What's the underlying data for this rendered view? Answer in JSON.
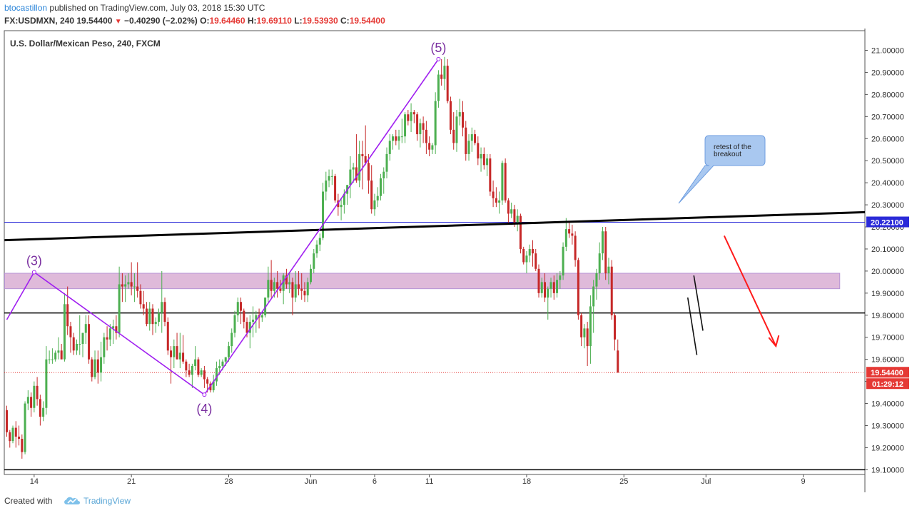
{
  "header": {
    "author": "btocastillon",
    "published_text": "published on TradingView.com, July 03, 2018 15:30 UTC",
    "symbol": "FX:USDMXN, 240",
    "last": "19.54400",
    "change_arrow": "▼",
    "change": "−0.40290 (−2.02%)",
    "o_label": "O:",
    "o_val": "19.64460",
    "h_label": "H:",
    "h_val": "19.69110",
    "l_label": "L:",
    "l_val": "19.53930",
    "c_label": "C:",
    "c_val": "19.54400"
  },
  "footer": {
    "created_with": "Created with",
    "brand": "TradingView",
    "brand_icon": "tradingview-cloud-icon"
  },
  "colors": {
    "up": "#4caf50",
    "down": "#c62828",
    "wave": "#a020f0",
    "zone": "#d9aed3",
    "trendline": "#000000",
    "hline_blue": "#2a2ad8",
    "price_label": "#e53935",
    "callout_fill": "#a9c8f0"
  },
  "chart_data": {
    "type": "candlestick",
    "title": "U.S. Dollar/Mexican Peso, 240, FXCM",
    "ylim": [
      19.07,
      21.09
    ],
    "price_ticks": [
      "21.00000",
      "20.90000",
      "20.80000",
      "20.70000",
      "20.60000",
      "20.50000",
      "20.40000",
      "20.30000",
      "20.20000",
      "20.10000",
      "20.00000",
      "19.90000",
      "19.80000",
      "19.70000",
      "19.60000",
      "19.50000",
      "19.40000",
      "19.30000",
      "19.20000",
      "19.10000"
    ],
    "time_ticks": [
      {
        "label": "14",
        "bar": 9
      },
      {
        "label": "21",
        "bar": 41
      },
      {
        "label": "28",
        "bar": 73
      },
      {
        "label": "Jun",
        "bar": 100
      },
      {
        "label": "6",
        "bar": 121
      },
      {
        "label": "11",
        "bar": 139
      },
      {
        "label": "18",
        "bar": 171
      },
      {
        "label": "25",
        "bar": 203
      },
      {
        "label": "Jul",
        "bar": 230
      },
      {
        "label": "9",
        "bar": 262
      }
    ],
    "last_price_label": "19.54400",
    "countdown_label": "01:29:12",
    "blue_level_label": "20.22100",
    "blue_level": 20.221,
    "black_levels": [
      19.81,
      19.1
    ],
    "zone": {
      "from_bar": 0,
      "to_bar": 274,
      "low": 19.92,
      "high": 19.99
    },
    "trendline": {
      "from_bar": 0,
      "from_price": 20.14,
      "to_bar": 290,
      "to_price": 20.27
    },
    "wave_labels": [
      {
        "label": "(3)",
        "bar": 9,
        "price": 19.995
      },
      {
        "label": "(4)",
        "bar": 65,
        "price": 19.44
      },
      {
        "label": "(5)",
        "bar": 142,
        "price": 20.96
      }
    ],
    "wave_path": [
      [
        0,
        19.78
      ],
      [
        9,
        19.995
      ],
      [
        65,
        19.44
      ],
      [
        142,
        20.96
      ]
    ],
    "annotation": "retest of the breakout",
    "forecast_arrow": {
      "from_bar": 236,
      "from_price": 20.16,
      "to_bar": 253,
      "to_price": 19.66
    },
    "ohlc": [
      [
        19.37,
        19.39,
        19.25,
        19.27
      ],
      [
        19.27,
        19.28,
        19.2,
        19.23
      ],
      [
        19.23,
        19.3,
        19.22,
        19.29
      ],
      [
        19.29,
        19.32,
        19.2,
        19.25
      ],
      [
        19.25,
        19.3,
        19.21,
        19.24
      ],
      [
        19.24,
        19.26,
        19.15,
        19.18
      ],
      [
        19.18,
        19.41,
        19.17,
        19.4
      ],
      [
        19.4,
        19.46,
        19.37,
        19.43
      ],
      [
        19.43,
        19.45,
        19.34,
        19.38
      ],
      [
        19.38,
        19.5,
        19.36,
        19.48
      ],
      [
        19.48,
        19.52,
        19.39,
        19.42
      ],
      [
        19.42,
        19.44,
        19.3,
        19.34
      ],
      [
        19.34,
        19.41,
        19.32,
        19.38
      ],
      [
        19.38,
        19.66,
        19.35,
        19.6
      ],
      [
        19.6,
        19.64,
        19.58,
        19.6
      ],
      [
        19.6,
        19.65,
        19.58,
        19.6
      ],
      [
        19.6,
        19.64,
        19.59,
        19.63
      ],
      [
        19.63,
        19.7,
        19.6,
        19.64
      ],
      [
        19.64,
        19.67,
        19.6,
        19.6
      ],
      [
        19.6,
        19.9,
        19.59,
        19.85
      ],
      [
        19.85,
        19.93,
        19.71,
        19.75
      ],
      [
        19.75,
        19.77,
        19.63,
        19.7
      ],
      [
        19.7,
        19.72,
        19.62,
        19.64
      ],
      [
        19.64,
        19.69,
        19.62,
        19.67
      ],
      [
        19.67,
        19.8,
        19.62,
        19.67
      ],
      [
        19.67,
        19.72,
        19.61,
        19.72
      ],
      [
        19.72,
        19.8,
        19.67,
        19.76
      ],
      [
        19.76,
        19.8,
        19.58,
        19.6
      ],
      [
        19.6,
        19.61,
        19.5,
        19.52
      ],
      [
        19.52,
        19.64,
        19.51,
        19.6
      ],
      [
        19.6,
        19.64,
        19.49,
        19.54
      ],
      [
        19.54,
        19.68,
        19.5,
        19.61
      ],
      [
        19.61,
        19.72,
        19.58,
        19.7
      ],
      [
        19.7,
        19.75,
        19.64,
        19.69
      ],
      [
        19.69,
        19.76,
        19.66,
        19.74
      ],
      [
        19.74,
        19.78,
        19.67,
        19.75
      ],
      [
        19.75,
        19.8,
        19.69,
        19.72
      ],
      [
        19.72,
        20.02,
        19.7,
        19.94
      ],
      [
        19.94,
        19.99,
        19.86,
        19.93
      ],
      [
        19.93,
        19.98,
        19.86,
        19.94
      ],
      [
        19.94,
        19.99,
        19.92,
        19.95
      ],
      [
        19.95,
        20.04,
        19.89,
        19.93
      ],
      [
        19.93,
        19.99,
        19.86,
        19.93
      ],
      [
        19.93,
        20.04,
        19.88,
        19.91
      ],
      [
        19.91,
        19.94,
        19.83,
        19.85
      ],
      [
        19.85,
        19.91,
        19.8,
        19.83
      ],
      [
        19.83,
        19.86,
        19.75,
        19.76
      ],
      [
        19.76,
        19.86,
        19.73,
        19.83
      ],
      [
        19.83,
        19.85,
        19.71,
        19.76
      ],
      [
        19.76,
        19.79,
        19.72,
        19.77
      ],
      [
        19.77,
        19.83,
        19.75,
        19.81
      ],
      [
        19.81,
        20.0,
        19.72,
        19.86
      ],
      [
        19.86,
        19.88,
        19.75,
        19.77
      ],
      [
        19.77,
        19.79,
        19.62,
        19.64
      ],
      [
        19.64,
        19.66,
        19.49,
        19.61
      ],
      [
        19.61,
        19.69,
        19.56,
        19.66
      ],
      [
        19.66,
        19.72,
        19.6,
        19.6
      ],
      [
        19.6,
        19.72,
        19.56,
        19.63
      ],
      [
        19.63,
        19.71,
        19.58,
        19.59
      ],
      [
        19.59,
        19.6,
        19.52,
        19.55
      ],
      [
        19.55,
        19.58,
        19.52,
        19.53
      ],
      [
        19.53,
        19.58,
        19.47,
        19.57
      ],
      [
        19.57,
        19.66,
        19.55,
        19.6
      ],
      [
        19.6,
        19.61,
        19.52,
        19.53
      ],
      [
        19.53,
        19.56,
        19.52,
        19.55
      ],
      [
        19.55,
        19.57,
        19.47,
        19.51
      ],
      [
        19.51,
        19.52,
        19.45,
        19.49
      ],
      [
        19.49,
        19.5,
        19.45,
        19.46
      ],
      [
        19.46,
        19.53,
        19.45,
        19.5
      ],
      [
        19.5,
        19.59,
        19.48,
        19.56
      ],
      [
        19.56,
        19.6,
        19.53,
        19.57
      ],
      [
        19.57,
        19.6,
        19.55,
        19.59
      ],
      [
        19.59,
        19.61,
        19.57,
        19.61
      ],
      [
        19.61,
        19.68,
        19.59,
        19.66
      ],
      [
        19.66,
        19.74,
        19.63,
        19.72
      ],
      [
        19.72,
        19.82,
        19.7,
        19.8
      ],
      [
        19.8,
        19.88,
        19.77,
        19.86
      ],
      [
        19.86,
        19.88,
        19.76,
        19.82
      ],
      [
        19.82,
        19.83,
        19.74,
        19.77
      ],
      [
        19.77,
        19.79,
        19.7,
        19.72
      ],
      [
        19.72,
        19.8,
        19.65,
        19.77
      ],
      [
        19.77,
        19.84,
        19.7,
        19.78
      ],
      [
        19.78,
        19.82,
        19.72,
        19.8
      ],
      [
        19.8,
        19.83,
        19.74,
        19.79
      ],
      [
        19.79,
        19.81,
        19.77,
        19.8
      ],
      [
        19.8,
        19.88,
        19.79,
        19.88
      ],
      [
        19.88,
        20.02,
        19.86,
        19.96
      ],
      [
        19.96,
        20.05,
        19.88,
        19.91
      ],
      [
        19.91,
        19.97,
        19.88,
        19.95
      ],
      [
        19.95,
        20.0,
        19.88,
        19.92
      ],
      [
        19.92,
        19.96,
        19.9,
        19.91
      ],
      [
        19.91,
        19.99,
        19.85,
        19.98
      ],
      [
        19.98,
        20.01,
        19.92,
        19.94
      ],
      [
        19.94,
        19.99,
        19.9,
        19.95
      ],
      [
        19.95,
        19.97,
        19.8,
        19.88
      ],
      [
        19.88,
        20.0,
        19.86,
        19.94
      ],
      [
        19.94,
        20.0,
        19.89,
        19.92
      ],
      [
        19.92,
        19.99,
        19.87,
        19.91
      ],
      [
        19.91,
        19.95,
        19.86,
        19.89
      ],
      [
        19.89,
        19.97,
        19.86,
        19.95
      ],
      [
        19.95,
        20.03,
        19.94,
        20.01
      ],
      [
        20.01,
        20.1,
        19.99,
        20.08
      ],
      [
        20.08,
        20.14,
        20.06,
        20.12
      ],
      [
        20.12,
        20.17,
        20.09,
        20.15
      ],
      [
        20.15,
        20.4,
        20.14,
        20.36
      ],
      [
        20.36,
        20.45,
        20.32,
        20.41
      ],
      [
        20.41,
        20.46,
        20.38,
        20.43
      ],
      [
        20.43,
        20.46,
        20.39,
        20.43
      ],
      [
        20.43,
        20.44,
        20.31,
        20.32
      ],
      [
        20.32,
        20.35,
        20.25,
        20.29
      ],
      [
        20.29,
        20.33,
        20.23,
        20.3
      ],
      [
        20.3,
        20.37,
        20.26,
        20.35
      ],
      [
        20.35,
        20.39,
        20.3,
        20.39
      ],
      [
        20.39,
        20.52,
        20.33,
        20.46
      ],
      [
        20.46,
        20.49,
        20.4,
        20.47
      ],
      [
        20.47,
        20.62,
        20.4,
        20.41
      ],
      [
        20.41,
        20.59,
        20.38,
        20.53
      ],
      [
        20.53,
        20.59,
        20.37,
        20.52
      ],
      [
        20.52,
        20.66,
        20.48,
        20.49
      ],
      [
        20.49,
        20.53,
        20.35,
        20.41
      ],
      [
        20.41,
        20.48,
        20.26,
        20.28
      ],
      [
        20.28,
        20.35,
        20.25,
        20.32
      ],
      [
        20.32,
        20.38,
        20.29,
        20.34
      ],
      [
        20.34,
        20.44,
        20.32,
        20.42
      ],
      [
        20.42,
        20.47,
        20.35,
        20.45
      ],
      [
        20.45,
        20.56,
        20.42,
        20.53
      ],
      [
        20.53,
        20.62,
        20.5,
        20.59
      ],
      [
        20.59,
        20.62,
        20.55,
        20.61
      ],
      [
        20.61,
        20.64,
        20.57,
        20.59
      ],
      [
        20.59,
        20.64,
        20.55,
        20.61
      ],
      [
        20.61,
        20.69,
        20.58,
        20.61
      ],
      [
        20.61,
        20.72,
        20.58,
        20.71
      ],
      [
        20.71,
        20.73,
        20.66,
        20.68
      ],
      [
        20.68,
        20.76,
        20.63,
        20.72
      ],
      [
        20.72,
        20.73,
        20.67,
        20.71
      ],
      [
        20.71,
        20.72,
        20.59,
        20.62
      ],
      [
        20.62,
        20.69,
        20.56,
        20.67
      ],
      [
        20.67,
        20.7,
        20.58,
        20.64
      ],
      [
        20.64,
        20.68,
        20.53,
        20.58
      ],
      [
        20.58,
        20.61,
        20.52,
        20.55
      ],
      [
        20.55,
        20.58,
        20.53,
        20.57
      ],
      [
        20.57,
        20.81,
        20.53,
        20.77
      ],
      [
        20.77,
        20.91,
        20.74,
        20.89
      ],
      [
        20.89,
        20.96,
        20.84,
        20.87
      ],
      [
        20.87,
        20.97,
        20.82,
        20.93
      ],
      [
        20.93,
        20.96,
        20.76,
        20.77
      ],
      [
        20.77,
        20.79,
        20.62,
        20.64
      ],
      [
        20.64,
        20.72,
        20.55,
        20.58
      ],
      [
        20.58,
        20.73,
        20.54,
        20.7
      ],
      [
        20.7,
        20.78,
        20.66,
        20.72
      ],
      [
        20.72,
        20.77,
        20.61,
        20.65
      ],
      [
        20.65,
        20.68,
        20.5,
        20.53
      ],
      [
        20.53,
        20.62,
        20.5,
        20.59
      ],
      [
        20.59,
        20.65,
        20.54,
        20.62
      ],
      [
        20.62,
        20.64,
        20.57,
        20.58
      ],
      [
        20.58,
        20.61,
        20.48,
        20.51
      ],
      [
        20.51,
        20.56,
        20.45,
        20.53
      ],
      [
        20.53,
        20.56,
        20.46,
        20.48
      ],
      [
        20.48,
        20.53,
        20.43,
        20.51
      ],
      [
        20.51,
        20.53,
        20.34,
        20.36
      ],
      [
        20.36,
        20.41,
        20.29,
        20.33
      ],
      [
        20.33,
        20.38,
        20.29,
        20.31
      ],
      [
        20.31,
        20.36,
        20.26,
        20.32
      ],
      [
        20.32,
        20.5,
        20.3,
        20.49
      ],
      [
        20.49,
        20.51,
        20.31,
        20.32
      ],
      [
        20.32,
        20.33,
        20.21,
        20.26
      ],
      [
        20.26,
        20.31,
        20.24,
        20.28
      ],
      [
        20.28,
        20.3,
        20.2,
        20.22
      ],
      [
        20.22,
        20.28,
        20.18,
        20.25
      ],
      [
        20.25,
        20.26,
        20.08,
        20.1
      ],
      [
        20.1,
        20.11,
        20.03,
        20.04
      ],
      [
        20.04,
        20.09,
        19.99,
        20.07
      ],
      [
        20.07,
        20.12,
        20.04,
        20.1
      ],
      [
        20.1,
        20.14,
        20.02,
        20.08
      ],
      [
        20.08,
        20.1,
        20.0,
        20.01
      ],
      [
        20.01,
        20.03,
        19.88,
        19.9
      ],
      [
        19.9,
        19.97,
        19.88,
        19.95
      ],
      [
        19.95,
        19.99,
        19.86,
        19.88
      ],
      [
        19.88,
        19.93,
        19.78,
        19.92
      ],
      [
        19.92,
        19.97,
        19.88,
        19.95
      ],
      [
        19.95,
        19.98,
        19.87,
        19.9
      ],
      [
        19.9,
        19.99,
        19.88,
        19.96
      ],
      [
        19.96,
        20.0,
        19.92,
        19.98
      ],
      [
        19.98,
        20.13,
        19.96,
        20.11
      ],
      [
        20.11,
        20.24,
        20.09,
        20.19
      ],
      [
        20.19,
        20.22,
        20.15,
        20.17
      ],
      [
        20.17,
        20.21,
        20.12,
        20.16
      ],
      [
        20.16,
        20.18,
        20.02,
        20.05
      ],
      [
        20.05,
        20.06,
        19.78,
        19.8
      ],
      [
        19.8,
        19.81,
        19.66,
        19.7
      ],
      [
        19.7,
        19.76,
        19.65,
        19.74
      ],
      [
        19.74,
        19.77,
        19.57,
        19.66
      ],
      [
        19.66,
        19.89,
        19.58,
        19.84
      ],
      [
        19.84,
        19.96,
        19.72,
        19.93
      ],
      [
        19.93,
        20.01,
        19.87,
        19.99
      ],
      [
        19.99,
        20.13,
        19.96,
        20.08
      ],
      [
        20.08,
        20.2,
        20.05,
        20.18
      ],
      [
        20.18,
        20.2,
        19.96,
        19.99
      ],
      [
        19.99,
        20.06,
        19.94,
        20.02
      ],
      [
        20.02,
        20.05,
        19.78,
        19.8
      ],
      [
        19.8,
        19.81,
        19.64,
        19.69
      ],
      [
        19.64,
        19.69,
        19.54,
        19.54
      ]
    ]
  }
}
